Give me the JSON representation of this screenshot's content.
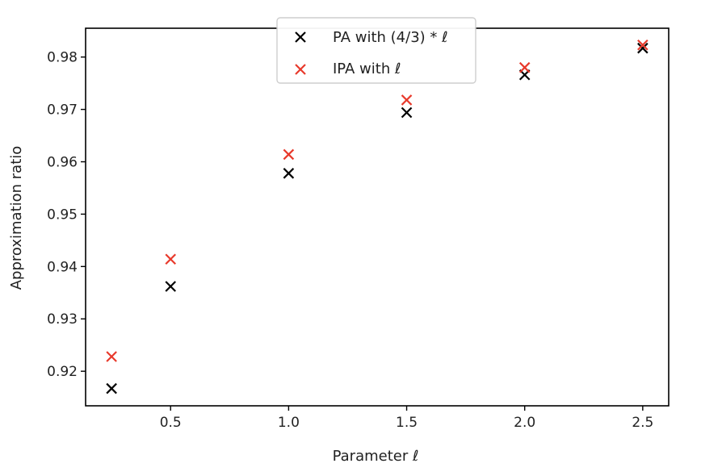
{
  "chart_data": {
    "type": "scatter",
    "xlabel": "Parameter ℓ",
    "ylabel": "Approximation ratio",
    "xlim": [
      0.14,
      2.61
    ],
    "ylim": [
      0.9134,
      0.9855
    ],
    "xticks": [
      0.5,
      1.0,
      1.5,
      2.0,
      2.5
    ],
    "xtick_labels": [
      "0.5",
      "1.0",
      "1.5",
      "2.0",
      "2.5"
    ],
    "yticks": [
      0.92,
      0.93,
      0.94,
      0.95,
      0.96,
      0.97,
      0.98
    ],
    "ytick_labels": [
      "0.92",
      "0.93",
      "0.94",
      "0.95",
      "0.96",
      "0.97",
      "0.98"
    ],
    "grid": false,
    "legend_position": "upper-center",
    "marker": "x",
    "series": [
      {
        "name": "PA with (4/3) * ℓ",
        "color": "#000000",
        "x": [
          0.25,
          0.5,
          1.0,
          1.5,
          2.0,
          2.5
        ],
        "y": [
          0.9167,
          0.9362,
          0.9578,
          0.9694,
          0.9766,
          0.9817
        ]
      },
      {
        "name": "IPA with ℓ",
        "color": "#e8392b",
        "x": [
          0.25,
          0.5,
          1.0,
          1.5,
          2.0,
          2.5
        ],
        "y": [
          0.9228,
          0.9414,
          0.9614,
          0.9718,
          0.978,
          0.9823
        ]
      }
    ]
  }
}
